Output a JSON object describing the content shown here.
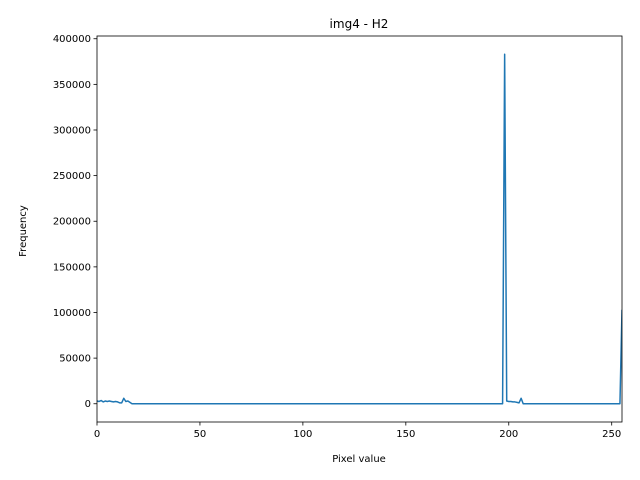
{
  "chart_data": {
    "type": "line",
    "title": "img4 - H2",
    "xlabel": "Pixel value",
    "ylabel": "Frequency",
    "xlim": [
      0,
      255
    ],
    "ylim": [
      -20000,
      403000
    ],
    "x_ticks": [
      0,
      50,
      100,
      150,
      200,
      250
    ],
    "x_tick_labels": [
      "0",
      "50",
      "100",
      "150",
      "200",
      "250"
    ],
    "y_ticks": [
      0,
      50000,
      100000,
      150000,
      200000,
      250000,
      300000,
      350000,
      400000
    ],
    "y_tick_labels": [
      "0",
      "50000",
      "100000",
      "150000",
      "200000",
      "250000",
      "300000",
      "350000",
      "400000"
    ],
    "grid": false,
    "color": "#1f77b4",
    "series": [
      {
        "x": [
          0,
          1,
          2,
          3,
          4,
          5,
          6,
          7,
          8,
          9,
          10,
          11,
          12,
          13,
          14,
          15,
          16,
          17,
          18,
          20,
          50,
          100,
          150,
          195,
          196,
          197,
          198,
          199,
          200,
          201,
          202,
          203,
          204,
          205,
          206,
          207,
          208,
          210,
          250,
          252,
          253,
          254,
          255
        ],
        "y": [
          3000,
          2500,
          3500,
          2000,
          3000,
          2500,
          3000,
          2500,
          2000,
          2500,
          2000,
          1000,
          1000,
          6000,
          2500,
          3000,
          1500,
          0,
          0,
          0,
          0,
          0,
          0,
          0,
          0,
          0,
          383000,
          3000,
          2500,
          2500,
          2000,
          2000,
          1500,
          1000,
          6000,
          0,
          0,
          0,
          0,
          0,
          0,
          0,
          103000
        ]
      }
    ]
  }
}
